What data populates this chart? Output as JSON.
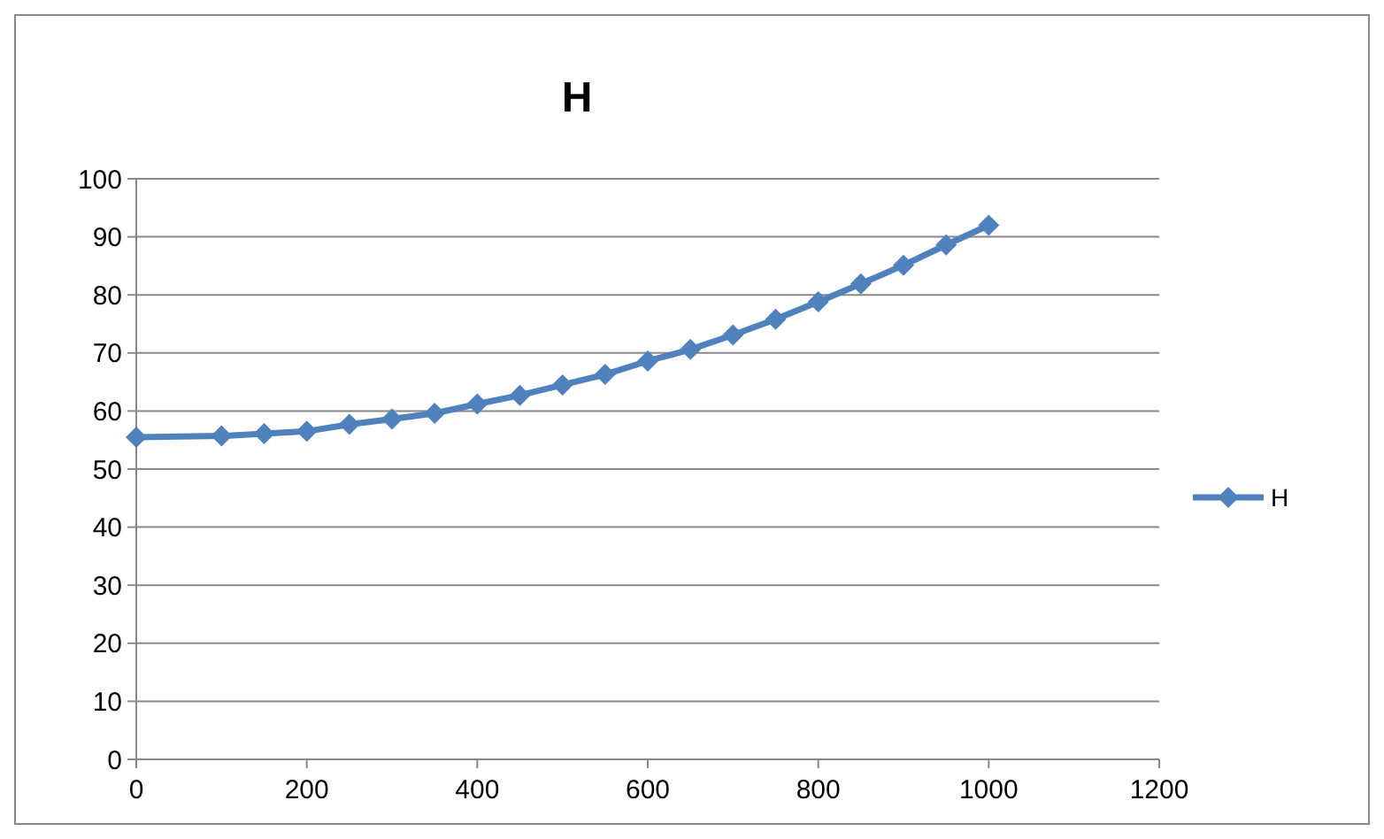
{
  "chart_data": {
    "type": "line",
    "title": "H",
    "x": [
      0,
      100,
      150,
      200,
      250,
      300,
      350,
      400,
      450,
      500,
      550,
      600,
      650,
      700,
      750,
      800,
      850,
      900,
      950,
      1000
    ],
    "series": [
      {
        "name": "H",
        "color": "#4f81bd",
        "values": [
          55.5,
          55.7,
          56.1,
          56.5,
          57.7,
          58.6,
          59.6,
          61.2,
          62.7,
          64.5,
          66.3,
          68.6,
          70.6,
          73.1,
          75.8,
          78.8,
          81.9,
          85.1,
          88.6,
          92.0
        ]
      }
    ],
    "xlim": [
      0,
      1200
    ],
    "xticks": [
      0,
      200,
      400,
      600,
      800,
      1000,
      1200
    ],
    "ylim": [
      0,
      100
    ],
    "yticks": [
      0,
      10,
      20,
      30,
      40,
      50,
      60,
      70,
      80,
      90,
      100
    ],
    "grid": "y",
    "legend": "right",
    "marker": "diamond",
    "line_style": "solid"
  }
}
